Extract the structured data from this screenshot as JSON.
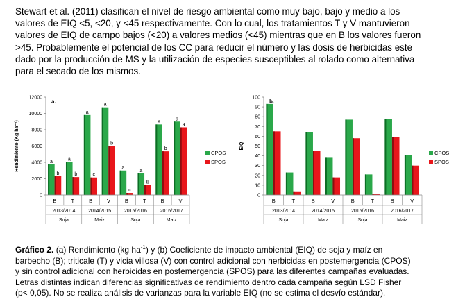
{
  "paragraph": {
    "lines": [
      "Stewart et al. (2011) clasifican el nivel de riesgo ambiental como muy bajo, bajo y medio a los",
      "valores de EIQ <5, <20, y <45 respectivamente. Con lo cual, los tratamientos T y V mantuvieron",
      "valores de EIQ de campo bajos (<20) a valores medios (<45) mientras que en B los valores fueron",
      ">45. Probablemente el potencial de los CC para reducir el número y las dosis de herbicidas este",
      "dado por la producción de MS y la utilización de especies susceptibles al rolado como alternativa",
      "para el secado de los mismos."
    ]
  },
  "colors": {
    "cpos": "#2aa84a",
    "cpos_dark": "#0d6e25",
    "spos": "#e8161b",
    "spos_dark": "#8f0c0f",
    "axis": "#888888"
  },
  "chart_data": [
    {
      "type": "bar",
      "panel_label": "a.",
      "ylabel": "Rendimiento (Kg ha⁻¹)",
      "ylim": [
        0,
        12000
      ],
      "yticks": [
        "0",
        "2000",
        "4000",
        "6000",
        "8000",
        "10000",
        "12000"
      ],
      "ytick_values": [
        0,
        2000,
        4000,
        6000,
        8000,
        10000,
        12000
      ],
      "categories": [
        "B",
        "T",
        "B",
        "V",
        "B",
        "T",
        "B",
        "V"
      ],
      "campaigns": [
        "2013/2014",
        "2014/2015",
        "2015/2016",
        "2016/2017"
      ],
      "crops": [
        "Soja",
        "Maiz",
        "Soja",
        "Maiz"
      ],
      "series": [
        {
          "name": "CPOS",
          "values": [
            3750,
            4050,
            9800,
            10750,
            3000,
            2650,
            8650,
            9000
          ],
          "letters": [
            "a",
            "a",
            "a",
            "a",
            "a",
            "a",
            "a",
            "a"
          ]
        },
        {
          "name": "SPOS",
          "values": [
            2300,
            2200,
            2150,
            6000,
            250,
            1250,
            5350,
            8300
          ],
          "letters": [
            "b",
            "b",
            "c",
            "b",
            "c",
            "b",
            "b",
            "a"
          ]
        }
      ]
    },
    {
      "type": "bar",
      "panel_label": "b.",
      "ylabel": "EIQ",
      "ylim": [
        0,
        100
      ],
      "yticks": [
        "0",
        "10",
        "20",
        "30",
        "40",
        "50",
        "60",
        "70",
        "80",
        "90",
        "100"
      ],
      "ytick_values": [
        0,
        10,
        20,
        30,
        40,
        50,
        60,
        70,
        80,
        90,
        100
      ],
      "categories": [
        "B",
        "T",
        "B",
        "V",
        "B",
        "T",
        "B",
        "V"
      ],
      "campaigns": [
        "2013/2014",
        "2014/2015",
        "2015/2016",
        "2016/2017"
      ],
      "crops": [
        "Soja",
        "Maiz",
        "Soja",
        "Maiz"
      ],
      "series": [
        {
          "name": "CPOS",
          "values": [
            93,
            23,
            64,
            38,
            77,
            21,
            78,
            41
          ],
          "letters": []
        },
        {
          "name": "SPOS",
          "values": [
            65,
            3,
            45,
            18,
            58,
            1,
            59,
            30
          ],
          "letters": []
        }
      ]
    }
  ],
  "caption": {
    "bold": "Gráfico 2.",
    "line1_a": " (a) Rendimiento (kg ha",
    "line1_sup": "-1",
    "line1_b": ") y (b) Coeficiente de impacto ambiental (EIQ) de soja y maíz en",
    "lines": [
      "barbecho (B); triticale (T) y vicia villosa (V) con control adicional con herbicidas en postemergencia (CPOS)",
      "y sin control adicional con herbicidas en postemergencia (SPOS) para las diferentes campañas evaluadas.",
      "Letras distintas indican diferencias significativas de rendimiento dentro cada campaña según LSD Fisher",
      "(p< 0,05). No se realiza análisis de varianzas para la variable EIQ (no se estima el desvío estándar)."
    ]
  }
}
